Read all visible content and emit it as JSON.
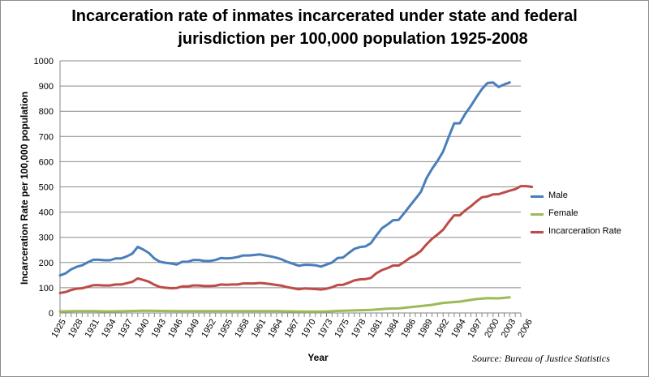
{
  "chart_data": {
    "type": "line",
    "title": "Incarceration rate of inmates incarcerated under state and federal",
    "title_line2": "jurisdiction per 100,000 population 1925-2008",
    "xlabel": "Year",
    "ylabel": "Incarceration Rate per 100,000 population",
    "source": "Source: Bureau of Justice Statistics",
    "xlim": [
      1925,
      2008
    ],
    "ylim": [
      0,
      1000
    ],
    "y_ticks": [
      0,
      100,
      200,
      300,
      400,
      500,
      600,
      700,
      800,
      900,
      1000
    ],
    "x_tick_labels": [
      "1925",
      "1928",
      "1931",
      "1934",
      "1937",
      "1940",
      "1943",
      "1946",
      "1949",
      "1952",
      "1955",
      "1958",
      "1961",
      "1964",
      "1967",
      "1970",
      "1973",
      "1975",
      "1978",
      "1981",
      "1984",
      "1986",
      "1989",
      "1992",
      "1994",
      "1997",
      "2000",
      "2003",
      "2006"
    ],
    "grid": true,
    "legend_position": "right",
    "series": [
      {
        "name": "Male",
        "color": "#4a7ebb",
        "points": [
          [
            1925,
            149
          ],
          [
            1926,
            157
          ],
          [
            1927,
            173
          ],
          [
            1928,
            183
          ],
          [
            1929,
            189
          ],
          [
            1930,
            201
          ],
          [
            1931,
            211
          ],
          [
            1932,
            211
          ],
          [
            1933,
            209
          ],
          [
            1934,
            209
          ],
          [
            1935,
            216
          ],
          [
            1936,
            216
          ],
          [
            1937,
            224
          ],
          [
            1938,
            235
          ],
          [
            1939,
            262
          ],
          [
            1940,
            251
          ],
          [
            1941,
            238
          ],
          [
            1942,
            216
          ],
          [
            1943,
            203
          ],
          [
            1944,
            199
          ],
          [
            1945,
            196
          ],
          [
            1946,
            192
          ],
          [
            1947,
            203
          ],
          [
            1948,
            203
          ],
          [
            1949,
            210
          ],
          [
            1950,
            210
          ],
          [
            1951,
            206
          ],
          [
            1952,
            206
          ],
          [
            1953,
            210
          ],
          [
            1954,
            218
          ],
          [
            1955,
            216
          ],
          [
            1956,
            218
          ],
          [
            1957,
            222
          ],
          [
            1958,
            228
          ],
          [
            1959,
            228
          ],
          [
            1960,
            230
          ],
          [
            1961,
            232
          ],
          [
            1962,
            228
          ],
          [
            1963,
            224
          ],
          [
            1964,
            219
          ],
          [
            1965,
            212
          ],
          [
            1966,
            202
          ],
          [
            1967,
            195
          ],
          [
            1968,
            187
          ],
          [
            1969,
            191
          ],
          [
            1970,
            191
          ],
          [
            1971,
            189
          ],
          [
            1972,
            184
          ],
          [
            1973,
            192
          ],
          [
            1974,
            200
          ],
          [
            1975,
            218
          ],
          [
            1976,
            220
          ],
          [
            1977,
            238
          ],
          [
            1978,
            254
          ],
          [
            1979,
            261
          ],
          [
            1980,
            264
          ],
          [
            1981,
            277
          ],
          [
            1982,
            308
          ],
          [
            1983,
            336
          ],
          [
            1984,
            351
          ],
          [
            1985,
            368
          ],
          [
            1986,
            369
          ],
          [
            1987,
            396
          ],
          [
            1988,
            424
          ],
          [
            1989,
            452
          ],
          [
            1990,
            480
          ],
          [
            1991,
            534
          ],
          [
            1992,
            571
          ],
          [
            1993,
            603
          ],
          [
            1994,
            640
          ],
          [
            1995,
            697
          ],
          [
            1996,
            752
          ],
          [
            1997,
            752
          ],
          [
            1998,
            790
          ],
          [
            1999,
            821
          ],
          [
            2000,
            856
          ],
          [
            2001,
            888
          ],
          [
            2002,
            912
          ],
          [
            2003,
            914
          ],
          [
            2004,
            896
          ],
          [
            2005,
            906
          ],
          [
            2006,
            914
          ]
        ]
      },
      {
        "name": "Female",
        "color": "#9bbb59",
        "points": [
          [
            1925,
            6
          ],
          [
            1928,
            7
          ],
          [
            1931,
            7
          ],
          [
            1934,
            6
          ],
          [
            1937,
            7
          ],
          [
            1940,
            9
          ],
          [
            1943,
            8
          ],
          [
            1946,
            7
          ],
          [
            1949,
            7
          ],
          [
            1952,
            7
          ],
          [
            1955,
            7
          ],
          [
            1958,
            7
          ],
          [
            1961,
            7
          ],
          [
            1964,
            7
          ],
          [
            1967,
            6
          ],
          [
            1970,
            5
          ],
          [
            1973,
            6
          ],
          [
            1975,
            8
          ],
          [
            1978,
            10
          ],
          [
            1981,
            12
          ],
          [
            1984,
            17
          ],
          [
            1986,
            18
          ],
          [
            1989,
            25
          ],
          [
            1992,
            32
          ],
          [
            1994,
            40
          ],
          [
            1997,
            45
          ],
          [
            2000,
            55
          ],
          [
            2002,
            59
          ],
          [
            2004,
            58
          ],
          [
            2006,
            62
          ]
        ]
      },
      {
        "name": "Incarceration Rate",
        "color": "#be4b48",
        "points": [
          [
            1925,
            79
          ],
          [
            1926,
            83
          ],
          [
            1927,
            91
          ],
          [
            1928,
            96
          ],
          [
            1929,
            98
          ],
          [
            1930,
            104
          ],
          [
            1931,
            110
          ],
          [
            1932,
            110
          ],
          [
            1933,
            109
          ],
          [
            1934,
            109
          ],
          [
            1935,
            113
          ],
          [
            1936,
            113
          ],
          [
            1937,
            118
          ],
          [
            1938,
            123
          ],
          [
            1939,
            137
          ],
          [
            1940,
            131
          ],
          [
            1941,
            124
          ],
          [
            1942,
            112
          ],
          [
            1943,
            103
          ],
          [
            1944,
            100
          ],
          [
            1945,
            98
          ],
          [
            1946,
            99
          ],
          [
            1947,
            105
          ],
          [
            1948,
            105
          ],
          [
            1949,
            109
          ],
          [
            1950,
            109
          ],
          [
            1951,
            107
          ],
          [
            1952,
            107
          ],
          [
            1953,
            108
          ],
          [
            1954,
            113
          ],
          [
            1955,
            112
          ],
          [
            1956,
            113
          ],
          [
            1957,
            113
          ],
          [
            1958,
            117
          ],
          [
            1959,
            117
          ],
          [
            1960,
            117
          ],
          [
            1961,
            119
          ],
          [
            1962,
            117
          ],
          [
            1963,
            114
          ],
          [
            1964,
            111
          ],
          [
            1965,
            108
          ],
          [
            1966,
            102
          ],
          [
            1967,
            98
          ],
          [
            1968,
            94
          ],
          [
            1969,
            97
          ],
          [
            1970,
            96
          ],
          [
            1971,
            95
          ],
          [
            1972,
            93
          ],
          [
            1973,
            96
          ],
          [
            1974,
            102
          ],
          [
            1975,
            111
          ],
          [
            1976,
            112
          ],
          [
            1977,
            120
          ],
          [
            1978,
            129
          ],
          [
            1979,
            133
          ],
          [
            1980,
            134
          ],
          [
            1981,
            139
          ],
          [
            1982,
            158
          ],
          [
            1983,
            170
          ],
          [
            1984,
            178
          ],
          [
            1985,
            188
          ],
          [
            1986,
            188
          ],
          [
            1987,
            202
          ],
          [
            1988,
            218
          ],
          [
            1989,
            230
          ],
          [
            1990,
            246
          ],
          [
            1991,
            272
          ],
          [
            1992,
            294
          ],
          [
            1993,
            311
          ],
          [
            1994,
            330
          ],
          [
            1995,
            360
          ],
          [
            1996,
            387
          ],
          [
            1997,
            387
          ],
          [
            1998,
            407
          ],
          [
            1999,
            423
          ],
          [
            2000,
            442
          ],
          [
            2001,
            459
          ],
          [
            2002,
            462
          ],
          [
            2003,
            470
          ],
          [
            2004,
            471
          ],
          [
            2005,
            478
          ],
          [
            2006,
            485
          ],
          [
            2007,
            491
          ],
          [
            2008,
            503
          ],
          [
            2009,
            503
          ],
          [
            2010,
            500
          ]
        ]
      }
    ]
  }
}
